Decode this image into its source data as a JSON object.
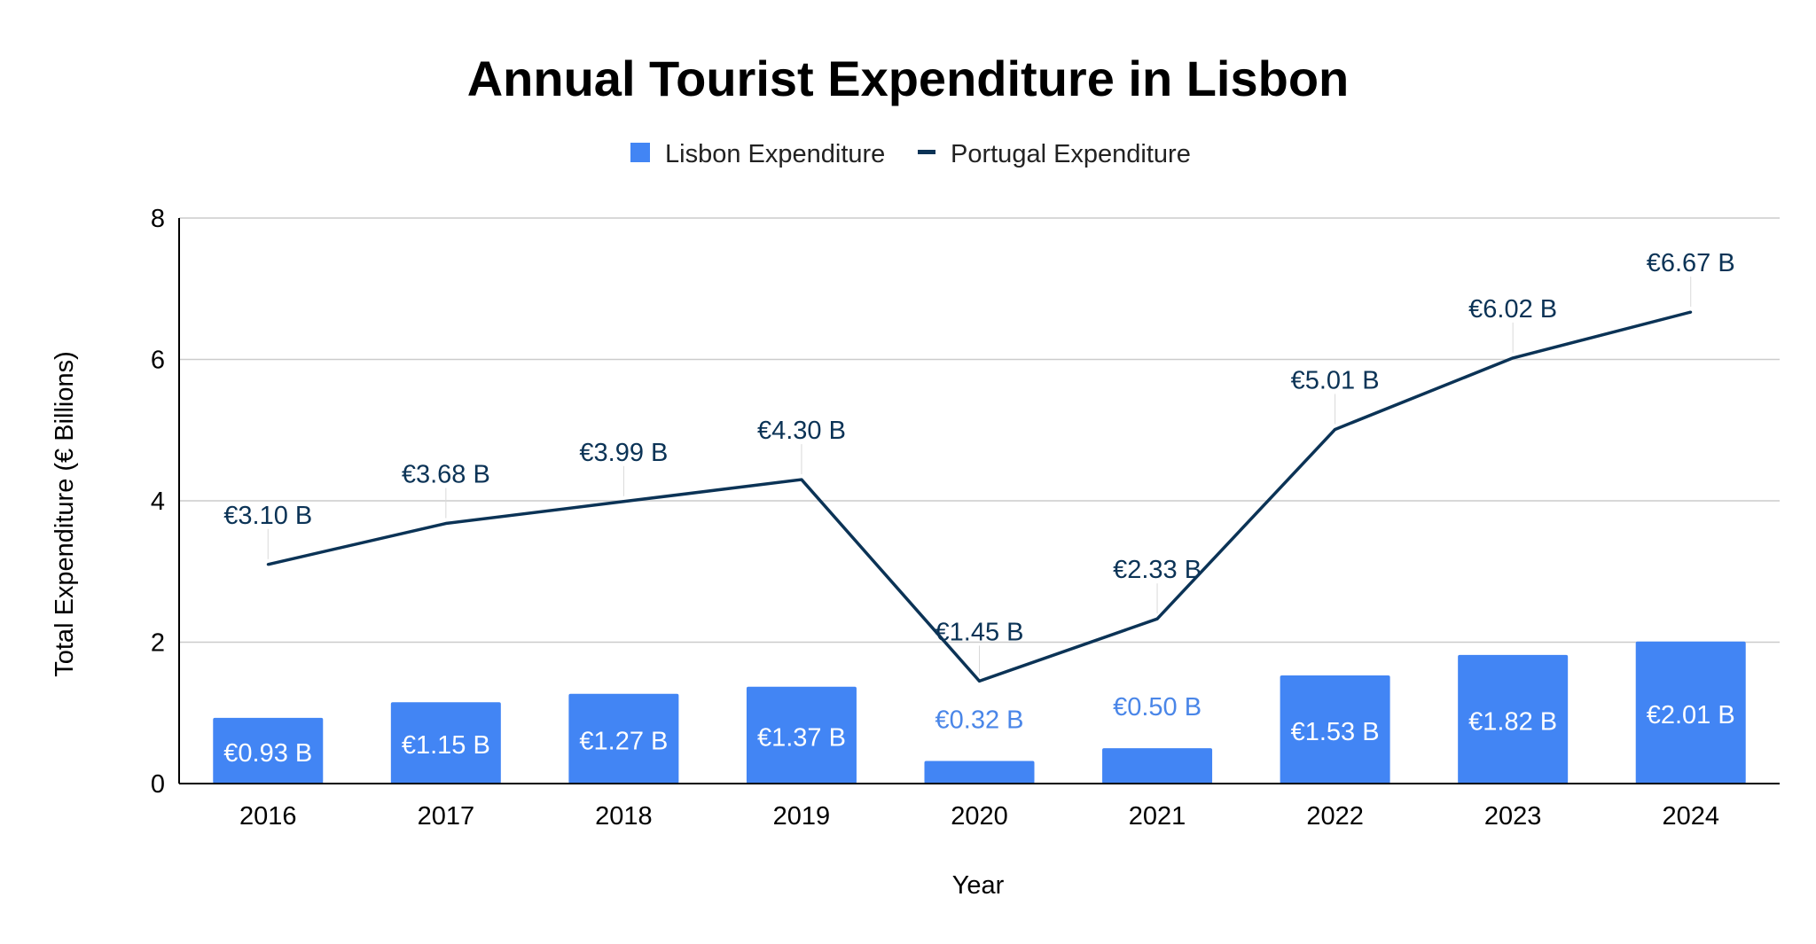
{
  "chart_data": {
    "type": "bar",
    "title": "Annual Tourist Expenditure in Lisbon",
    "xlabel": "Year",
    "ylabel": "Total Expenditure (€ Billions)",
    "categories": [
      "2016",
      "2017",
      "2018",
      "2019",
      "2020",
      "2021",
      "2022",
      "2023",
      "2024"
    ],
    "ylim": [
      0,
      8
    ],
    "yticks": [
      "0",
      "2",
      "4",
      "6",
      "8"
    ],
    "grid": true,
    "legend_position": "top-center",
    "series": [
      {
        "name": "Lisbon Expenditure",
        "type": "bar",
        "color": "#4285f4",
        "values": [
          0.93,
          1.15,
          1.27,
          1.37,
          0.32,
          0.5,
          1.53,
          1.82,
          2.01
        ],
        "labels": [
          "€0.93 B",
          "€1.15 B",
          "€1.27 B",
          "€1.37 B",
          "€0.32 B",
          "€0.50 B",
          "€1.53 B",
          "€1.82 B",
          "€2.01 B"
        ]
      },
      {
        "name": "Portugal Expenditure",
        "type": "line",
        "color": "#0b3356",
        "values": [
          3.1,
          3.68,
          3.99,
          4.3,
          1.45,
          2.33,
          5.01,
          6.02,
          6.67
        ],
        "labels": [
          "€3.10 B",
          "€3.68 B",
          "€3.99 B",
          "€4.30 B",
          "€1.45 B",
          "€2.33 B",
          "€5.01 B",
          "€6.02 B",
          "€6.67 B"
        ]
      }
    ]
  }
}
